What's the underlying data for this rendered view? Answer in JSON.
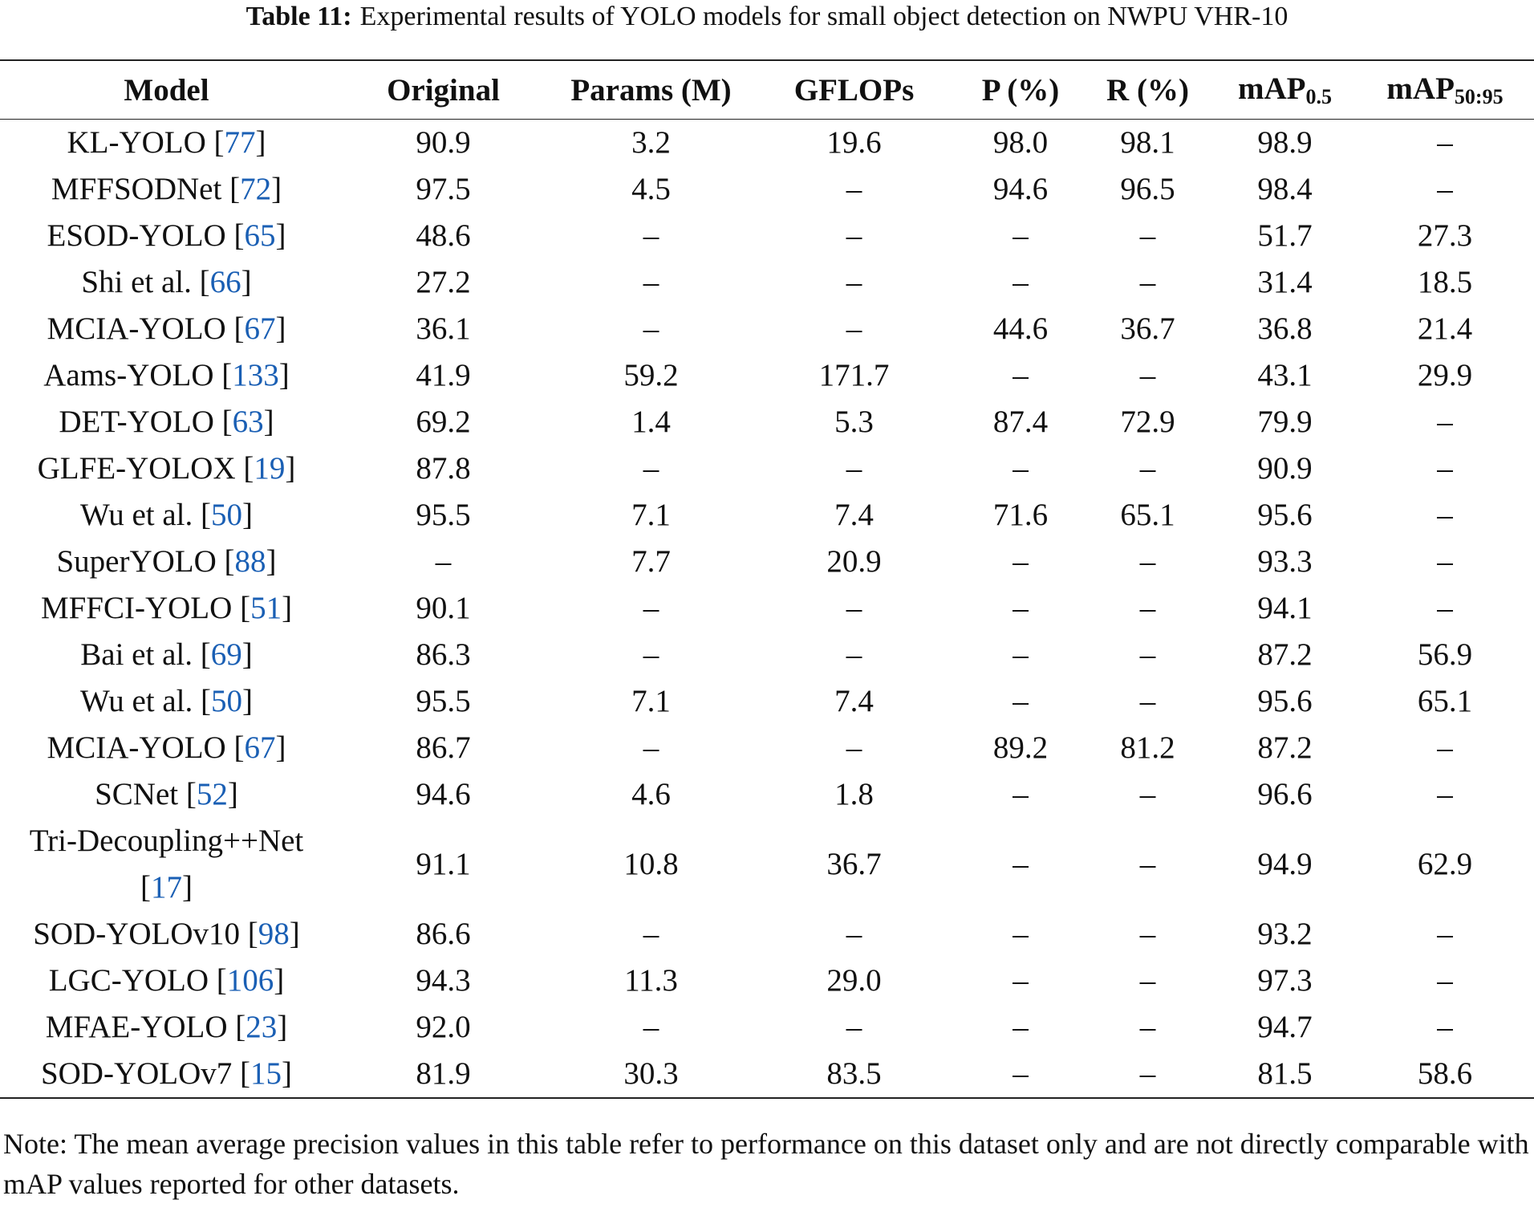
{
  "caption": {
    "label": "Table 11:",
    "text": "Experimental results of YOLO models for small object detection on NWPU VHR-10"
  },
  "table": {
    "header": [
      {
        "text": "Model"
      },
      {
        "text": "Original"
      },
      {
        "text": "Params (M)"
      },
      {
        "text": "GFLOPs"
      },
      {
        "text": "P (%)"
      },
      {
        "text": "R (%)"
      },
      {
        "text": "mAP",
        "sub": "0.5"
      },
      {
        "text": "mAP",
        "sub": "50:95"
      }
    ],
    "rows": [
      {
        "model": "KL-YOLO",
        "ref": "[77]",
        "cells": [
          "90.9",
          "3.2",
          "19.6",
          "98.0",
          "98.1",
          "98.9",
          "–"
        ]
      },
      {
        "model": "MFFSODNet",
        "ref": "[72]",
        "cells": [
          "97.5",
          "4.5",
          "–",
          "94.6",
          "96.5",
          "98.4",
          "–"
        ]
      },
      {
        "model": "ESOD-YOLO",
        "ref": "[65]",
        "cells": [
          "48.6",
          "–",
          "–",
          "–",
          "–",
          "51.7",
          "27.3"
        ]
      },
      {
        "model": "Shi et al.",
        "ref": "[66]",
        "cells": [
          "27.2",
          "–",
          "–",
          "–",
          "–",
          "31.4",
          "18.5"
        ]
      },
      {
        "model": "MCIA-YOLO",
        "ref": "[67]",
        "cells": [
          "36.1",
          "–",
          "–",
          "44.6",
          "36.7",
          "36.8",
          "21.4"
        ]
      },
      {
        "model": "Aams-YOLO",
        "ref": "[133]",
        "cells": [
          "41.9",
          "59.2",
          "171.7",
          "–",
          "–",
          "43.1",
          "29.9"
        ]
      },
      {
        "model": "DET-YOLO",
        "ref": "[63]",
        "cells": [
          "69.2",
          "1.4",
          "5.3",
          "87.4",
          "72.9",
          "79.9",
          "–"
        ]
      },
      {
        "model": "GLFE-YOLOX",
        "ref": "[19]",
        "cells": [
          "87.8",
          "–",
          "–",
          "–",
          "–",
          "90.9",
          "–"
        ]
      },
      {
        "model": "Wu et al.",
        "ref": "[50]",
        "cells": [
          "95.5",
          "7.1",
          "7.4",
          "71.6",
          "65.1",
          "95.6",
          "–"
        ]
      },
      {
        "model": "SuperYOLO",
        "ref": "[88]",
        "cells": [
          "–",
          "7.7",
          "20.9",
          "–",
          "–",
          "93.3",
          "–"
        ]
      },
      {
        "model": "MFFCI-YOLO",
        "ref": "[51]",
        "cells": [
          "90.1",
          "–",
          "–",
          "–",
          "–",
          "94.1",
          "–"
        ]
      },
      {
        "model": "Bai et al.",
        "ref": "[69]",
        "cells": [
          "86.3",
          "–",
          "–",
          "–",
          "–",
          "87.2",
          "56.9"
        ]
      },
      {
        "model": "Wu et al.",
        "ref": "[50]",
        "cells": [
          "95.5",
          "7.1",
          "7.4",
          "–",
          "–",
          "95.6",
          "65.1"
        ]
      },
      {
        "model": "MCIA-YOLO",
        "ref": "[67]",
        "cells": [
          "86.7",
          "–",
          "–",
          "89.2",
          "81.2",
          "87.2",
          "–"
        ]
      },
      {
        "model": "SCNet",
        "ref": "[52]",
        "cells": [
          "94.6",
          "4.6",
          "1.8",
          "–",
          "–",
          "96.6",
          "–"
        ]
      },
      {
        "model": "Tri-Decoupling++Net",
        "ref": "[17]",
        "cells": [
          "91.1",
          "10.8",
          "36.7",
          "–",
          "–",
          "94.9",
          "62.9"
        ]
      },
      {
        "model": "SOD-YOLOv10",
        "ref": "[98]",
        "cells": [
          "86.6",
          "–",
          "–",
          "–",
          "–",
          "93.2",
          "–"
        ]
      },
      {
        "model": "LGC-YOLO",
        "ref": "[106]",
        "cells": [
          "94.3",
          "11.3",
          "29.0",
          "–",
          "–",
          "97.3",
          "–"
        ]
      },
      {
        "model": "MFAE-YOLO",
        "ref": "[23]",
        "cells": [
          "92.0",
          "–",
          "–",
          "–",
          "–",
          "94.7",
          "–"
        ]
      },
      {
        "model": "SOD-YOLOv7",
        "ref": "[15]",
        "cells": [
          "81.9",
          "30.3",
          "83.5",
          "–",
          "–",
          "81.5",
          "58.6"
        ]
      }
    ]
  },
  "note": "Note: The mean average precision values in this table refer to performance on this dataset only and are not directly comparable with mAP values reported for other datasets."
}
